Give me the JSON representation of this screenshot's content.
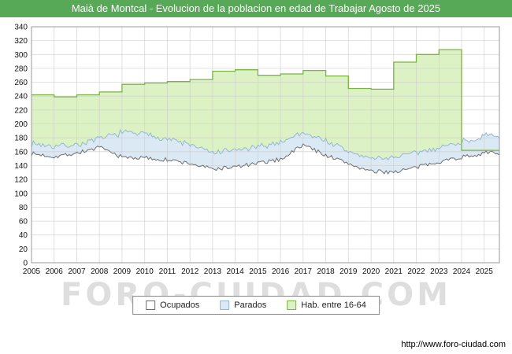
{
  "window": {
    "title": "Maià de Montcal - Evolucion de la poblacion en edad de Trabajar Agosto de 2025"
  },
  "watermark": "FORO-CIUDAD.COM",
  "footer": {
    "url": "http://www.foro-ciudad.com"
  },
  "legend": {
    "items": [
      {
        "key": "ocupados",
        "label": "Ocupados"
      },
      {
        "key": "parados",
        "label": "Parados"
      },
      {
        "key": "hab",
        "label": "Hab. entre 16-64"
      }
    ]
  },
  "colors": {
    "title_bg": "#57a957",
    "title_text": "#ffffff",
    "grid": "#cccccc",
    "axis_border": "#999999",
    "ocupados_line": "#6e6e6e",
    "ocupados_fill": "#ffffff",
    "parados_line": "#95b7d4",
    "parados_fill": "#dbe9f5",
    "hab_line": "#7cb342",
    "hab_fill": "#ddf2c4"
  },
  "chart_data": {
    "type": "area",
    "title": "Maià de Montcal - Evolucion de la poblacion en edad de Trabajar Agosto de 2025",
    "x_years": [
      2005,
      2006,
      2007,
      2008,
      2009,
      2010,
      2011,
      2012,
      2013,
      2014,
      2015,
      2016,
      2017,
      2018,
      2019,
      2020,
      2021,
      2022,
      2023,
      2024,
      2025
    ],
    "x_end": 2025.67,
    "ylim": [
      0,
      340
    ],
    "ytick_step": 20,
    "grid": true,
    "legend_position": "bottom",
    "series": [
      {
        "name": "Ocupados",
        "render": "line+area",
        "stacked_on": null,
        "values": [
          157,
          153,
          158,
          166,
          152,
          151,
          148,
          143,
          135,
          138,
          143,
          149,
          170,
          155,
          143,
          131,
          131,
          137,
          146,
          152,
          158
        ]
      },
      {
        "name": "Parados",
        "render": "line+area",
        "stacked_on": "Ocupados",
        "values": [
          15,
          15,
          12,
          12,
          36,
          34,
          31,
          27,
          23,
          24,
          23,
          25,
          18,
          21,
          17,
          19,
          21,
          21,
          20,
          22,
          24
        ]
      },
      {
        "name": "Hab. entre 16-64",
        "render": "step-line+area",
        "stacked_on": null,
        "values": [
          242,
          239,
          242,
          246,
          257,
          259,
          261,
          264,
          276,
          278,
          270,
          272,
          277,
          269,
          251,
          250,
          289,
          300,
          307,
          162,
          162
        ]
      }
    ]
  }
}
